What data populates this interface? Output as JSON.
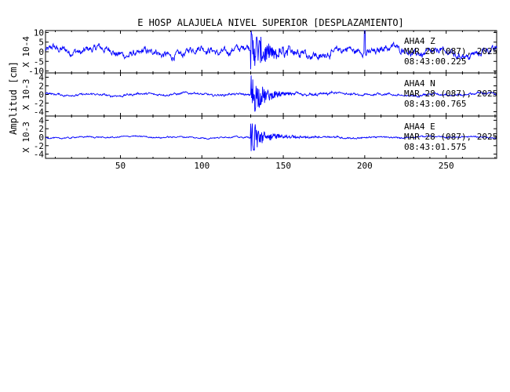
{
  "title": "E HOSP ALAJUELA NIVEL SUPERIOR [DESPLAZAMIENTO]",
  "y_axis_label": "Amplitud [cm]",
  "trace_color": "#0000ff",
  "chart_data": {
    "type": "line",
    "x_ticks": [
      50,
      100,
      150,
      200,
      250
    ],
    "xlim": [
      4,
      281
    ],
    "grid": false,
    "panels": [
      {
        "channel": "AHA4 Z",
        "date": "MAR 28 (087), 2025",
        "time": "08:43:00.225",
        "scale_label": "X 10-4",
        "y_ticks": [
          10,
          5,
          0,
          -5,
          -10
        ],
        "ylim": [
          -11,
          11
        ],
        "noise_amp": 3.2,
        "event_start": 130,
        "event_amp": 10.5,
        "event_decay": 9,
        "spike_x": 200,
        "spike_amp": 11
      },
      {
        "channel": "AHA4 N",
        "date": "MAR 28 (087), 2025",
        "time": "08:43:00.765",
        "scale_label": "X 10-3",
        "y_ticks": [
          4,
          2,
          0,
          -2,
          -4
        ],
        "ylim": [
          -5,
          5
        ],
        "noise_amp": 0.45,
        "event_start": 130,
        "event_amp": 5,
        "event_decay": 6,
        "spike_x": null,
        "spike_amp": 0
      },
      {
        "channel": "AHA4 E",
        "date": "MAR 28 (087), 2025",
        "time": "08:43:01.575",
        "scale_label": "X 10-3",
        "y_ticks": [
          4,
          2,
          0,
          -2,
          -4
        ],
        "ylim": [
          -5,
          5
        ],
        "noise_amp": 0.3,
        "event_start": 130,
        "event_amp": 5,
        "event_decay": 5,
        "spike_x": null,
        "spike_amp": 0
      }
    ]
  }
}
